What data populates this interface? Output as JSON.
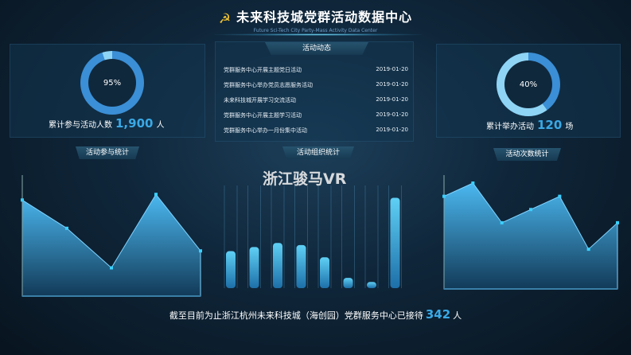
{
  "header": {
    "title": "未来科技城党群活动数据中心",
    "subtitle": "Future Sci-Tech City Party-Mass Activity Data Center",
    "logo_icon": "hammer-sickle-icon"
  },
  "left_stat": {
    "percent": "95%",
    "percent_value": 95,
    "label": "累计参与活动人数",
    "value": "1,900",
    "unit": "人"
  },
  "right_stat": {
    "percent": "40%",
    "percent_value": 40,
    "label": "累计举办活动",
    "value": "120",
    "unit": "场"
  },
  "activity_list": {
    "title": "活动动态",
    "items": [
      {
        "text": "党群服务中心开展主题党日活动",
        "date": "2019-01-20"
      },
      {
        "text": "党群服务中心举办党员志愿服务活动",
        "date": "2019-01-20"
      },
      {
        "text": "未来科技城开展学习交流活动",
        "date": "2019-01-20"
      },
      {
        "text": "党群服务中心开展主题学习活动",
        "date": "2019-01-20"
      },
      {
        "text": "党群服务中心举办一月份集中活动",
        "date": "2019-01-20"
      }
    ]
  },
  "panels": {
    "left_title": "活动参与统计",
    "center_title": "活动组织统计",
    "right_title": "活动次数统计"
  },
  "watermark": "浙江骏马VR",
  "bottom": {
    "prefix": "截至目前为止浙江杭州未来科技城（海创园）党群服务中心已接待",
    "value": "342",
    "unit": "人"
  },
  "colors": {
    "accent": "#3aa9e6",
    "ring_dark": "#3b8fd6",
    "ring_light": "#8fd4f5",
    "area": "#4bb6ee"
  },
  "chart_data": [
    {
      "type": "area",
      "values": [
        8.5,
        6,
        2.5,
        9,
        4
      ],
      "ylim": [
        0,
        10
      ],
      "grid": false
    },
    {
      "type": "bar",
      "values": [
        18,
        20,
        22,
        21,
        15,
        5,
        3,
        44
      ],
      "ylim": [
        0,
        50
      ],
      "grid": false
    },
    {
      "type": "area",
      "values": [
        7,
        8,
        5,
        6,
        7,
        3,
        5
      ],
      "ylim": [
        0,
        8
      ],
      "grid": false
    }
  ]
}
